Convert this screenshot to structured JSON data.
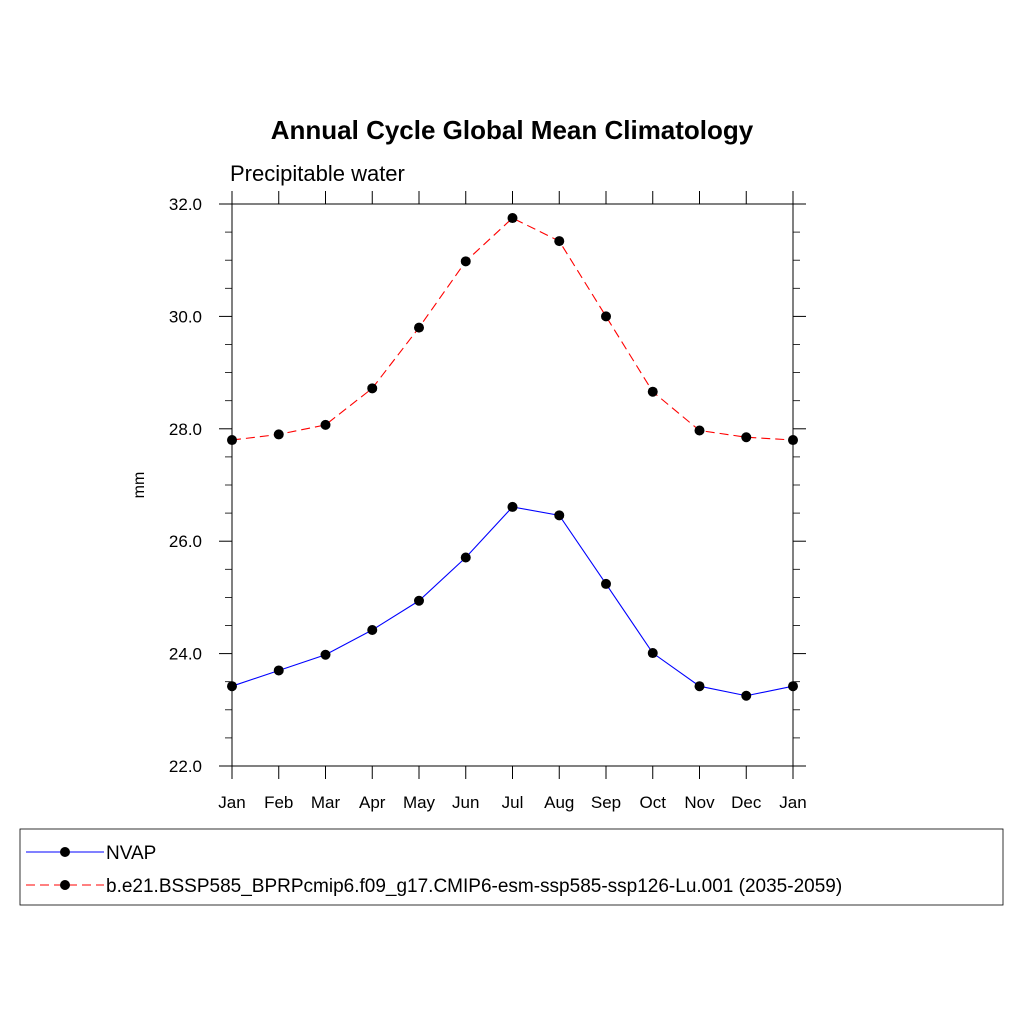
{
  "chart_data": {
    "type": "line",
    "title": "Annual Cycle Global Mean Climatology",
    "subtitle": "Precipitable water",
    "xlabel": "",
    "ylabel": "mm",
    "categories": [
      "Jan",
      "Feb",
      "Mar",
      "Apr",
      "May",
      "Jun",
      "Jul",
      "Aug",
      "Sep",
      "Oct",
      "Nov",
      "Dec",
      "Jan"
    ],
    "ylim": [
      22.0,
      32.0
    ],
    "yticks": [
      "22.0",
      "24.0",
      "26.0",
      "28.0",
      "30.0",
      "32.0"
    ],
    "ytick_values": [
      22,
      24,
      26,
      28,
      30,
      32
    ],
    "grid": false,
    "legend_position": "bottom",
    "series": [
      {
        "name": "NVAP",
        "color": "#0000ff",
        "dash": "solid",
        "values": [
          23.42,
          23.7,
          23.98,
          24.42,
          24.94,
          25.71,
          26.61,
          26.46,
          25.24,
          24.01,
          23.42,
          23.25,
          23.42
        ]
      },
      {
        "name": "b.e21.BSSP585_BPRPcmip6.f09_g17.CMIP6-esm-ssp585-ssp126-Lu.001 (2035-2059)",
        "color": "#ff0000",
        "dash": "dashed",
        "values": [
          27.8,
          27.9,
          28.07,
          28.72,
          29.8,
          30.98,
          31.75,
          31.34,
          30.0,
          28.66,
          27.97,
          27.85,
          27.8
        ]
      }
    ]
  }
}
